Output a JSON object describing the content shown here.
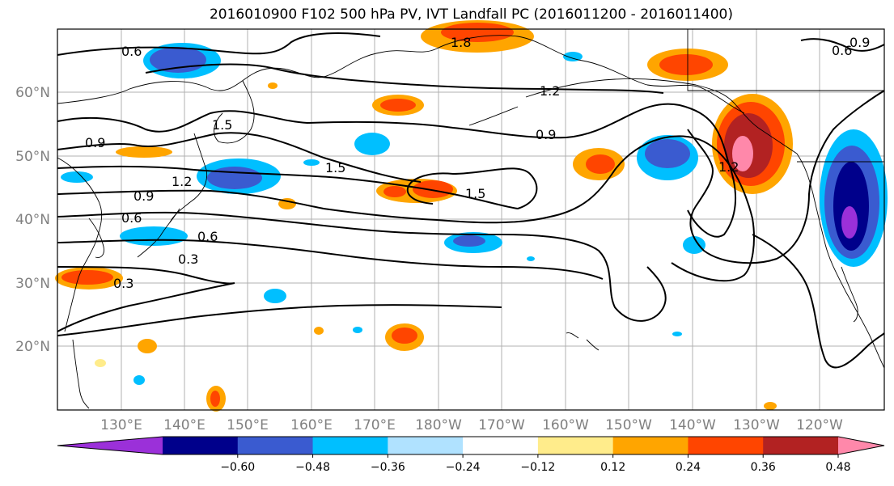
{
  "title": "2016010900 F102 500 hPa PV, IVT Landfall PC (2016011200 - 2016011400)",
  "latitude_labels": [
    "60°N",
    "50°N",
    "40°N",
    "30°N",
    "20°N"
  ],
  "longitude_labels": [
    "130°E",
    "140°E",
    "150°E",
    "160°E",
    "170°E",
    "180°W",
    "170°W",
    "160°W",
    "150°W",
    "140°W",
    "130°W",
    "120°W"
  ],
  "pv_contour_labels": [
    "0.6",
    "1.2",
    "1.5",
    "0.9",
    "1.2",
    "1.5",
    "0.9",
    "1.5",
    "1.5",
    "0.9",
    "1.2",
    "0.9",
    "0.6",
    "0.6",
    "0.3",
    "0.3",
    "1.8",
    "0.9",
    "0.6"
  ],
  "colorbar": {
    "tick_labels": [
      "−0.60",
      "−0.48",
      "−0.36",
      "−0.24",
      "−0.12",
      "0.12",
      "0.24",
      "0.36",
      "0.48",
      "0.60"
    ],
    "colors": [
      "#9b30d9",
      "#00008b",
      "#3a5bd0",
      "#00bfff",
      "#b0e2ff",
      "#ffffff",
      "#ffec8b",
      "#ffa500",
      "#ff4500",
      "#b22222",
      "#ff88aa"
    ]
  },
  "grid_colors": {
    "grid": "#b0b0b0",
    "frame": "#000000",
    "coast": "#000000"
  }
}
